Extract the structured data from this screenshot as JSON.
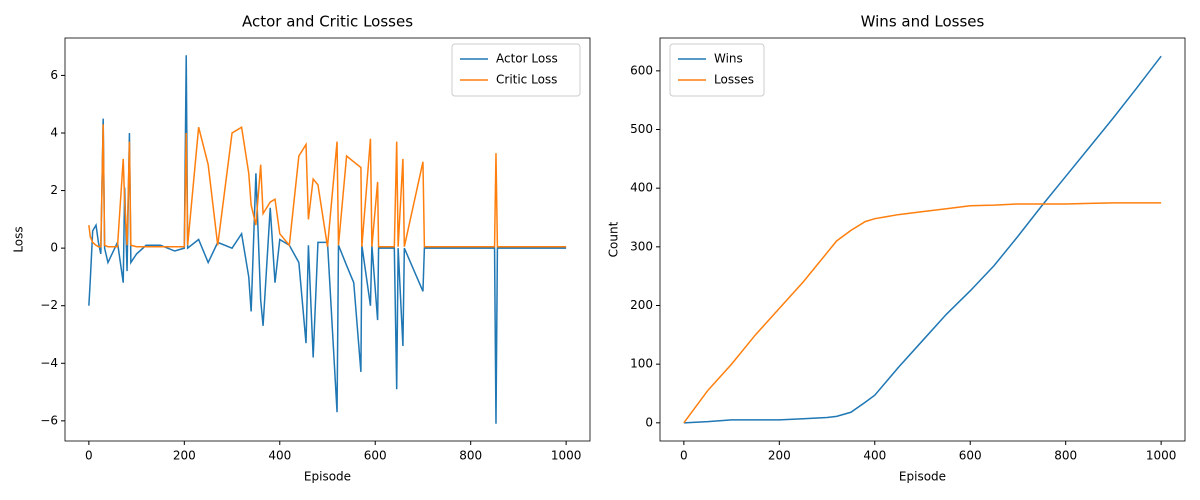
{
  "chart_data": [
    {
      "type": "line",
      "title": "Actor and Critic Losses",
      "xlabel": "Episode",
      "ylabel": "Loss",
      "x": [
        0,
        3,
        8,
        15,
        20,
        25,
        30,
        33,
        40,
        60,
        72,
        75,
        80,
        85,
        88,
        100,
        120,
        150,
        180,
        200,
        204,
        207,
        230,
        250,
        270,
        300,
        320,
        335,
        340,
        350,
        360,
        365,
        380,
        390,
        400,
        420,
        440,
        455,
        460,
        470,
        480,
        500,
        520,
        523,
        540,
        555,
        570,
        572,
        590,
        593,
        605,
        607,
        640,
        645,
        648,
        658,
        661,
        700,
        703,
        850,
        853,
        856,
        1000
      ],
      "series": [
        {
          "name": "Actor Loss",
          "color": "#1f77b4",
          "values": [
            -2,
            -1.1,
            0.6,
            0.8,
            0.2,
            -0.2,
            4.5,
            0,
            -0.5,
            0.2,
            -1.2,
            2.1,
            -0.8,
            4,
            -0.5,
            -0.2,
            0.1,
            0.1,
            -0.1,
            0,
            6.7,
            0,
            0.3,
            -0.5,
            0.2,
            0,
            0.5,
            -1,
            -2.2,
            2.6,
            -1.8,
            -2.7,
            1.4,
            -1.2,
            0.3,
            0.1,
            -0.5,
            -3.3,
            0.1,
            -3.8,
            0.2,
            0.2,
            -5.7,
            0.1,
            -0.6,
            -1.2,
            -4.3,
            0.1,
            -2,
            0.1,
            -2.5,
            0,
            0,
            -4.9,
            0,
            -3.4,
            0,
            -1.5,
            0,
            0,
            -6.1,
            0,
            0
          ]
        },
        {
          "name": "Critic Loss",
          "color": "#ff7f0e",
          "values": [
            0.8,
            0.4,
            0.2,
            0.1,
            0.05,
            0.05,
            4.3,
            0.1,
            0.05,
            0.05,
            3.1,
            1.6,
            0.1,
            3.7,
            0.1,
            0.05,
            0.05,
            0.05,
            0.05,
            0.05,
            4,
            0.1,
            4.2,
            2.9,
            0.1,
            4,
            4.2,
            2.6,
            1.5,
            0.8,
            2.9,
            1.2,
            1.6,
            1.7,
            0.5,
            0.1,
            3.2,
            3.6,
            1,
            2.4,
            2.2,
            0.05,
            3.7,
            0.1,
            3.2,
            3,
            2.8,
            0.05,
            3.8,
            0.05,
            2.3,
            0.05,
            0.05,
            3.7,
            0.05,
            3.1,
            0.05,
            3,
            0.05,
            0.05,
            3.3,
            0.05,
            0.05
          ]
        }
      ],
      "xlim": [
        -50,
        1050
      ],
      "xticks": [
        0,
        200,
        400,
        600,
        800,
        1000
      ],
      "ylim": [
        -6.7,
        7.3
      ],
      "yticks": [
        {
          "value": -6,
          "label": "−6"
        },
        {
          "value": -4,
          "label": "−4"
        },
        {
          "value": -2,
          "label": "−2"
        },
        0,
        2,
        4,
        6
      ],
      "legend": "upper right"
    },
    {
      "type": "line",
      "title": "Wins and Losses",
      "xlabel": "Episode",
      "ylabel": "Count",
      "x": [
        0,
        50,
        100,
        150,
        200,
        250,
        300,
        320,
        350,
        380,
        400,
        450,
        500,
        550,
        600,
        650,
        700,
        750,
        800,
        850,
        900,
        950,
        1000
      ],
      "series": [
        {
          "name": "Wins",
          "color": "#1f77b4",
          "values": [
            0,
            2,
            5,
            5,
            5,
            7,
            9,
            11,
            18,
            35,
            47,
            95,
            140,
            185,
            225,
            268,
            318,
            370,
            420,
            470,
            520,
            572,
            625
          ]
        },
        {
          "name": "Losses",
          "color": "#ff7f0e",
          "values": [
            0,
            55,
            100,
            150,
            195,
            240,
            290,
            310,
            328,
            343,
            348,
            355,
            360,
            365,
            370,
            371,
            373,
            373,
            373,
            374,
            375,
            375,
            375
          ]
        }
      ],
      "xlim": [
        -50,
        1050
      ],
      "xticks": [
        0,
        200,
        400,
        600,
        800,
        1000
      ],
      "ylim": [
        -31,
        656
      ],
      "yticks": [
        0,
        100,
        200,
        300,
        400,
        500,
        600
      ],
      "legend": "upper left"
    }
  ]
}
